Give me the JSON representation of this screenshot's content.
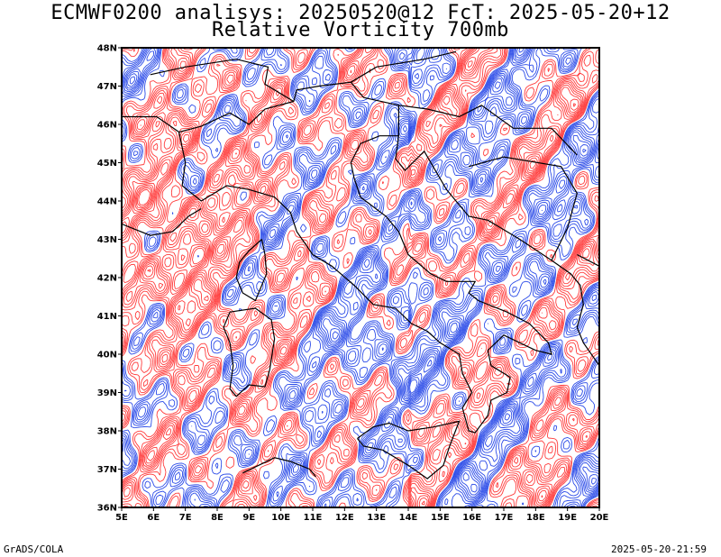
{
  "header": {
    "title_line1": "ECMWF0200 analisys: 20250520@12 FcT: 2025-05-20+12",
    "title_line2": "Relative Vorticity 700mb"
  },
  "footer": {
    "left": "GrADS/COLA",
    "right": "2025-05-20-21:59"
  },
  "map": {
    "lon_range": [
      5,
      20
    ],
    "lat_range": [
      36,
      48
    ],
    "lon_ticks": [
      "5E",
      "6E",
      "7E",
      "8E",
      "9E",
      "10E",
      "11E",
      "12E",
      "13E",
      "14E",
      "15E",
      "16E",
      "17E",
      "18E",
      "19E",
      "20E"
    ],
    "lat_ticks": [
      "36N",
      "37N",
      "38N",
      "39N",
      "40N",
      "41N",
      "42N",
      "43N",
      "44N",
      "45N",
      "46N",
      "47N",
      "48N"
    ],
    "colors": {
      "positive": "#ff3b3b",
      "negative": "#2b4be8",
      "coast": "#000000",
      "frame": "#000000"
    }
  }
}
